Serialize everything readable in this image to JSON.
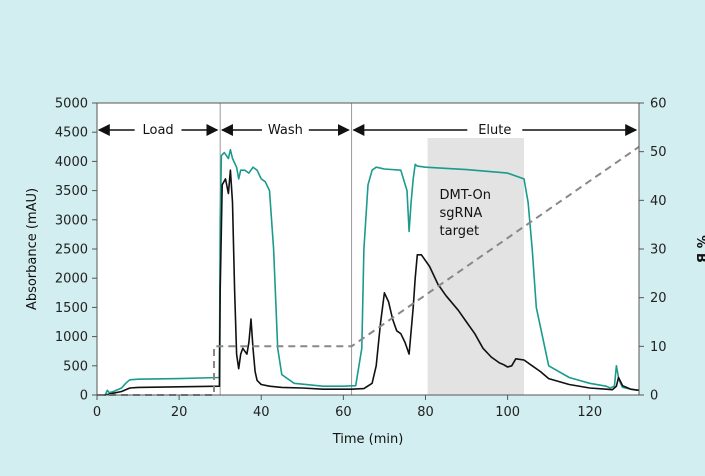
{
  "chart_data": {
    "type": "line",
    "title": "",
    "xlabel": "Time (min)",
    "ylabel": "Absorbance (mAU)",
    "y2label": "% B",
    "xlim": [
      0,
      132
    ],
    "ylim": [
      0,
      5000
    ],
    "y2lim": [
      0,
      60
    ],
    "xticks": [
      0,
      20,
      40,
      60,
      80,
      100,
      120
    ],
    "yticks": [
      0,
      500,
      1000,
      1500,
      2000,
      2500,
      3000,
      3500,
      4000,
      4500,
      5000
    ],
    "y2ticks": [
      0,
      10,
      20,
      30,
      40,
      50,
      60
    ],
    "grid": false,
    "phases": [
      {
        "label": "Load",
        "start": 0,
        "end": 30
      },
      {
        "label": "Wash",
        "start": 30,
        "end": 62
      },
      {
        "label": "Elute",
        "start": 62,
        "end": 132
      }
    ],
    "phase_dividers": [
      30,
      62
    ],
    "shaded_region": {
      "x": [
        80.5,
        104
      ],
      "y_top": 4400,
      "label_lines": [
        "DMT-On",
        "sgRNA",
        "target"
      ]
    },
    "colors": {
      "teal": "#1a9b8c",
      "black": "#111111",
      "gradient": "#888888",
      "shade": "#e3e3e3"
    },
    "series": [
      {
        "axis": "left",
        "color": "#1a9b8c",
        "x": [
          0,
          2,
          2.5,
          3,
          4,
          6,
          7,
          8,
          10,
          20,
          29.8,
          30,
          30.3,
          31,
          32,
          32.5,
          33,
          34,
          34.5,
          35,
          36,
          37,
          38,
          39,
          40,
          41,
          42,
          43,
          44,
          45,
          48,
          55,
          60,
          63,
          64.5,
          65,
          66,
          67,
          68,
          70,
          74,
          75.5,
          76,
          76.5,
          77,
          77.5,
          78,
          80,
          90,
          100,
          104,
          105,
          106,
          107,
          110,
          115,
          120,
          124,
          125,
          126,
          126.5,
          127,
          127.5,
          128,
          130,
          132
        ],
        "y": [
          0,
          0,
          80,
          40,
          60,
          120,
          200,
          260,
          270,
          280,
          300,
          3000,
          4100,
          4150,
          4050,
          4200,
          4050,
          3900,
          3700,
          3850,
          3850,
          3800,
          3900,
          3850,
          3700,
          3650,
          3500,
          2500,
          800,
          350,
          200,
          150,
          150,
          160,
          800,
          2500,
          3600,
          3850,
          3900,
          3870,
          3850,
          3500,
          2800,
          3300,
          3700,
          3950,
          3920,
          3900,
          3860,
          3800,
          3700,
          3300,
          2500,
          1500,
          500,
          300,
          200,
          150,
          120,
          150,
          500,
          300,
          200,
          130,
          100,
          80
        ]
      },
      {
        "axis": "left",
        "color": "#111111",
        "x": [
          0,
          2,
          4,
          6,
          8,
          10,
          20,
          29.8,
          30,
          30.5,
          31.3,
          32,
          32.5,
          33,
          33.5,
          34,
          34.5,
          35,
          35.5,
          36,
          36.5,
          37,
          37.5,
          38,
          38.5,
          39,
          40,
          42,
          45,
          50,
          55,
          60,
          62,
          65,
          67,
          68,
          69,
          70,
          71,
          72,
          73,
          74,
          75,
          76,
          77,
          77.5,
          78,
          79,
          81,
          83,
          85,
          88,
          90,
          92,
          94,
          96,
          98,
          99,
          100,
          101,
          102,
          104,
          106,
          108,
          110,
          115,
          120,
          124,
          125.5,
          126,
          126.5,
          127,
          128,
          130,
          132
        ],
        "y": [
          0,
          0,
          30,
          60,
          120,
          130,
          140,
          150,
          1800,
          3600,
          3700,
          3450,
          3850,
          3300,
          1800,
          700,
          450,
          700,
          800,
          750,
          700,
          900,
          1300,
          800,
          400,
          250,
          180,
          150,
          130,
          120,
          100,
          100,
          100,
          110,
          200,
          500,
          1200,
          1750,
          1600,
          1300,
          1100,
          1050,
          900,
          700,
          1500,
          2000,
          2400,
          2400,
          2200,
          1900,
          1700,
          1450,
          1250,
          1050,
          800,
          650,
          550,
          520,
          480,
          500,
          620,
          600,
          500,
          400,
          280,
          180,
          120,
          100,
          90,
          120,
          150,
          300,
          160,
          100,
          80
        ]
      },
      {
        "axis": "right",
        "color": "#888888",
        "dash": true,
        "x": [
          0,
          28.5,
          28.5,
          62,
          132
        ],
        "y": [
          0,
          0,
          10,
          10,
          51
        ]
      }
    ]
  }
}
